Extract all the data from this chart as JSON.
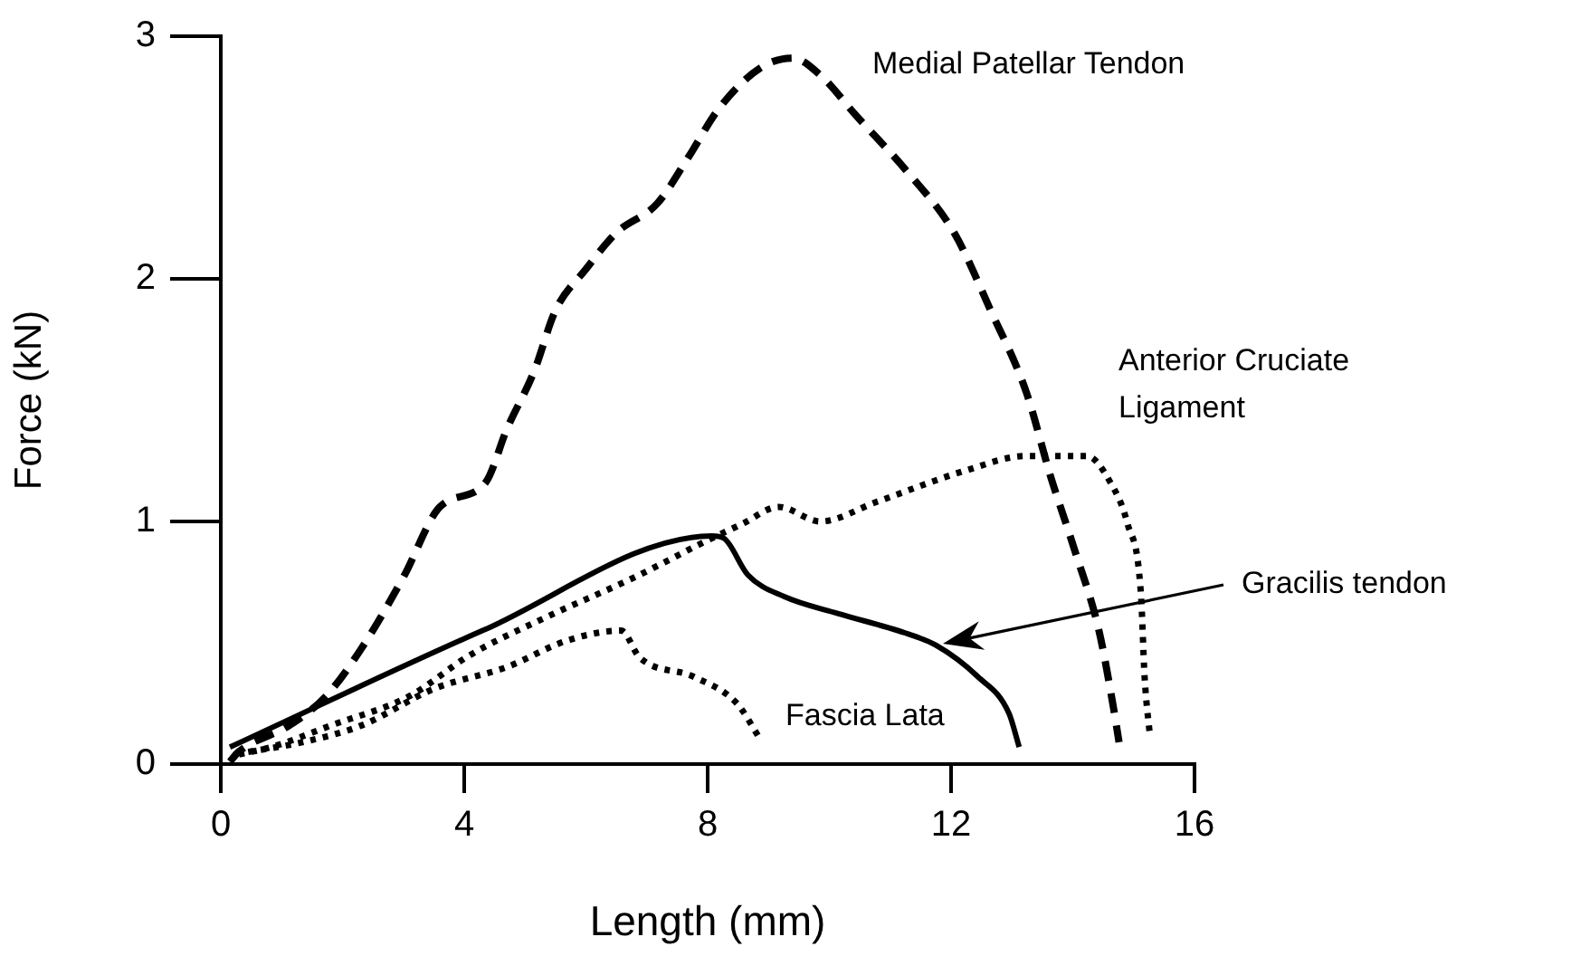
{
  "chart_data": {
    "type": "line",
    "xlabel": "Length (mm)",
    "ylabel": "Force (kN)",
    "xlim": [
      0,
      16
    ],
    "xticks": [
      0,
      4,
      8,
      12,
      16
    ],
    "ylim": [
      0,
      3
    ],
    "yticks": [
      0,
      1,
      2,
      3
    ],
    "grid": false,
    "legend": false,
    "marker": "none",
    "series": [
      {
        "name": "Medial Patellar Tendon",
        "color": "#000000",
        "line_style": "dashed",
        "x": [
          0.15,
          0.29,
          1.13,
          1.73,
          2.32,
          3.0,
          3.6,
          4.35,
          4.7,
          5.15,
          5.5,
          6.0,
          6.5,
          7.17,
          7.68,
          8.18,
          8.87,
          9.4,
          9.85,
          10.45,
          11.25,
          12.05,
          12.65,
          13.24,
          13.63,
          14.02,
          14.43,
          14.67,
          14.76
        ],
        "values": [
          0.01,
          0.05,
          0.16,
          0.28,
          0.48,
          0.77,
          1.06,
          1.16,
          1.38,
          1.62,
          1.87,
          2.04,
          2.19,
          2.31,
          2.5,
          2.7,
          2.87,
          2.91,
          2.84,
          2.67,
          2.45,
          2.19,
          1.87,
          1.53,
          1.19,
          0.89,
          0.55,
          0.23,
          0.09
        ]
      },
      {
        "name": "Anterior Cruciate Ligament",
        "color": "#000000",
        "line_style": "dotted",
        "x": [
          0.3,
          0.83,
          1.82,
          3.1,
          4.1,
          5.3,
          6.8,
          7.98,
          8.57,
          9.17,
          9.85,
          10.77,
          12.24,
          13.24,
          14.23,
          14.62,
          14.9,
          15.12,
          15.18,
          15.27
        ],
        "values": [
          0.04,
          0.07,
          0.16,
          0.28,
          0.45,
          0.6,
          0.77,
          0.92,
          0.99,
          1.06,
          1.0,
          1.08,
          1.21,
          1.27,
          1.27,
          1.16,
          0.99,
          0.7,
          0.36,
          0.11
        ]
      },
      {
        "name": "Gracilis tendon",
        "color": "#000000",
        "line_style": "solid",
        "x": [
          0.15,
          4.3,
          8.07,
          8.27,
          8.66,
          9.26,
          10.15,
          11.25,
          11.75,
          12.44,
          12.95,
          13.12
        ],
        "values": [
          0.07,
          0.55,
          0.94,
          0.93,
          0.78,
          0.69,
          0.62,
          0.54,
          0.49,
          0.36,
          0.21,
          0.07
        ]
      },
      {
        "name": "Fascia Lata",
        "color": "#000000",
        "line_style": "dotted",
        "x": [
          0.45,
          1.34,
          2.32,
          3.5,
          4.7,
          5.7,
          6.58,
          6.88,
          7.77,
          8.48,
          8.87
        ],
        "values": [
          0.05,
          0.09,
          0.16,
          0.31,
          0.4,
          0.51,
          0.55,
          0.44,
          0.36,
          0.25,
          0.1
        ]
      }
    ]
  }
}
